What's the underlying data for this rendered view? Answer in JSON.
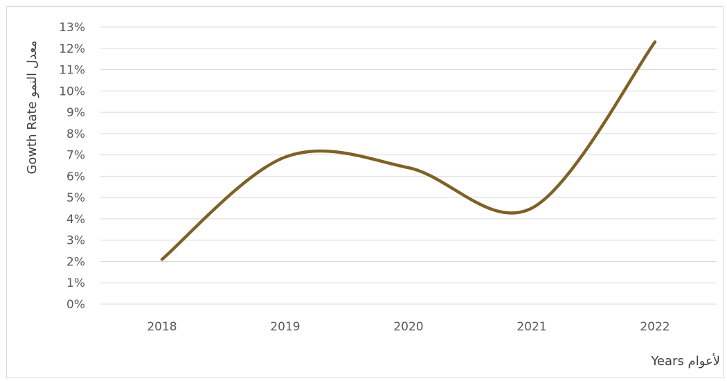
{
  "chart_data": {
    "type": "line",
    "categories": [
      "2018",
      "2019",
      "2020",
      "2021",
      "2022"
    ],
    "series": [
      {
        "values": [
          2.1,
          6.9,
          6.4,
          4.5,
          12.3
        ]
      }
    ],
    "ylabel": "Gowth Rate معدل النمو",
    "xlabel": "Years لأعوام",
    "ylim": [
      0,
      13
    ],
    "ytick_step": 1,
    "ytick_format": "percent",
    "grid": true,
    "line_color": "#7f6127",
    "grid_color": "#d9d9d9",
    "smooth": true
  }
}
